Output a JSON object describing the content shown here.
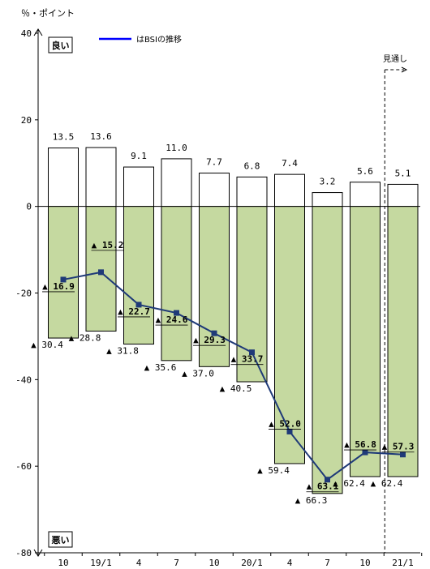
{
  "chart_data": {
    "type": "bar",
    "unit_label": "％・ポイント",
    "legend": "はBSIの推移",
    "top_label": "良い",
    "bottom_label": "悪い",
    "forecast_label": "見通し",
    "categories": [
      "10",
      "19/1",
      "4",
      "7",
      "10",
      "20/1",
      "4",
      "7",
      "10",
      "21/1"
    ],
    "good_values": [
      13.5,
      13.6,
      9.1,
      11.0,
      7.7,
      6.8,
      7.4,
      3.2,
      5.6,
      5.1
    ],
    "good_labels": [
      "13.5",
      "13.6",
      "9.1",
      "11.0",
      "7.7",
      "6.8",
      "7.4",
      "3.2",
      "5.6",
      "5.1"
    ],
    "bad_values": [
      -30.4,
      -28.8,
      -31.8,
      -35.6,
      -37.0,
      -40.5,
      -59.4,
      -66.3,
      -62.4,
      -62.4
    ],
    "bad_labels": [
      "▲ 30.4",
      "▲ 28.8",
      "▲ 31.8",
      "▲ 35.6",
      "▲ 37.0",
      "▲ 40.5",
      "▲ 59.4",
      "▲ 66.3",
      "▲ 62.4",
      "▲ 62.4"
    ],
    "bsi_values": [
      -16.9,
      -15.2,
      -22.7,
      -24.6,
      -29.3,
      -33.7,
      -52.0,
      -63.1,
      -56.8,
      -57.3
    ],
    "bsi_labels": [
      "▲ 16.9",
      "▲ 15.2",
      "▲ 22.7",
      "▲ 24.6",
      "▲ 29.3",
      "▲ 33.7",
      "▲ 52.0",
      "▲ 63.1",
      "▲ 56.8",
      "▲ 57.3"
    ],
    "ylim": [
      -80,
      40
    ],
    "yticks": [
      40,
      20,
      0,
      -20,
      -40,
      -60,
      -80
    ],
    "colors": {
      "good_fill": "#ffffff",
      "bad_fill": "#c5d9a0",
      "bar_stroke": "#000000",
      "line": "#1f3a78",
      "marker": "#1f3a78",
      "legend_line": "#0000ff"
    },
    "forecast_from_index": 9
  }
}
